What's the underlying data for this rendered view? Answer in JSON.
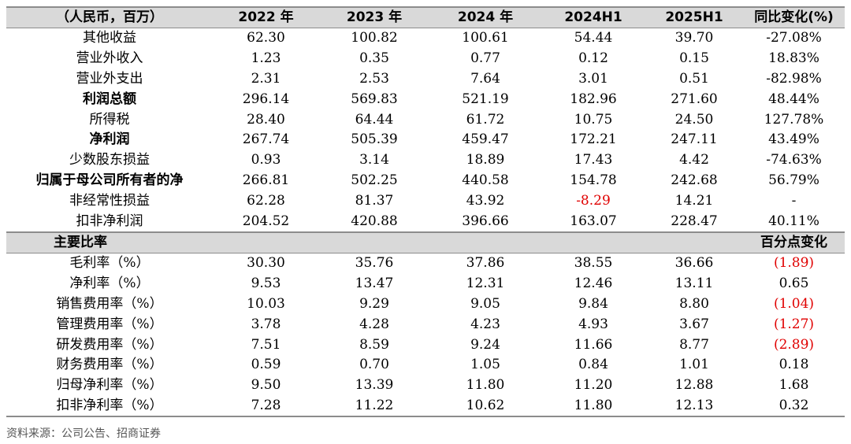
{
  "header": [
    "（人民币，百万）",
    "2022 年",
    "2023 年",
    "2024 年",
    "2024H1",
    "2025H1",
    "同比变化(%)"
  ],
  "rows": [
    {
      "label": "其他收益",
      "values": [
        "62.30",
        "100.82",
        "100.61",
        "54.44",
        "39.70",
        "-27.08%"
      ]
    },
    {
      "label": "营业外收入",
      "values": [
        "1.23",
        "0.35",
        "0.77",
        "0.12",
        "0.15",
        "18.83%"
      ]
    },
    {
      "label": "营业外支出",
      "values": [
        "2.31",
        "2.53",
        "7.64",
        "3.01",
        "0.51",
        "-82.98%"
      ]
    },
    {
      "label": "利润总额",
      "values": [
        "296.14",
        "569.83",
        "521.19",
        "182.96",
        "271.60",
        "48.44%"
      ]
    },
    {
      "label": "所得税",
      "values": [
        "28.40",
        "64.44",
        "61.72",
        "10.75",
        "24.50",
        "127.78%"
      ]
    },
    {
      "label": "净利润",
      "values": [
        "267.74",
        "505.39",
        "459.47",
        "172.21",
        "247.11",
        "43.49%"
      ]
    },
    {
      "label": "少数股东损益",
      "values": [
        "0.93",
        "3.14",
        "18.89",
        "17.43",
        "4.42",
        "-74.63%"
      ]
    },
    {
      "label": "归属于母公司所有者的净",
      "values": [
        "266.81",
        "502.25",
        "440.58",
        "154.78",
        "242.68",
        "56.79%"
      ]
    },
    {
      "label": "非经常性损益",
      "values": [
        "62.28",
        "81.37",
        "43.92",
        "-8.29",
        "14.21",
        "-"
      ]
    },
    {
      "label": "扣非净利润",
      "values": [
        "204.52",
        "420.88",
        "396.66",
        "163.07",
        "228.47",
        "40.11%"
      ]
    }
  ],
  "section": {
    "label": "主要比率",
    "change_label": "百分点变化"
  },
  "ratio_rows": [
    {
      "label": "毛利率（%）",
      "values": [
        "30.30",
        "35.76",
        "37.86",
        "38.55",
        "36.66",
        "(1.89)"
      ]
    },
    {
      "label": "净利率（%）",
      "values": [
        "9.53",
        "13.47",
        "12.31",
        "12.46",
        "13.11",
        "0.65"
      ]
    },
    {
      "label": "销售费用率（%）",
      "values": [
        "10.03",
        "9.29",
        "9.05",
        "9.84",
        "8.80",
        "(1.04)"
      ]
    },
    {
      "label": "管理费用率（%）",
      "values": [
        "3.78",
        "4.28",
        "4.23",
        "4.93",
        "3.67",
        "(1.27)"
      ]
    },
    {
      "label": "研发费用率（%）",
      "values": [
        "7.51",
        "8.59",
        "9.24",
        "11.66",
        "8.77",
        "(2.89)"
      ]
    },
    {
      "label": "财务费用率（%）",
      "values": [
        "0.59",
        "0.70",
        "1.05",
        "0.84",
        "1.01",
        "0.18"
      ]
    },
    {
      "label": "归母净利率（%）",
      "values": [
        "9.50",
        "13.39",
        "11.80",
        "11.20",
        "12.88",
        "1.68"
      ]
    },
    {
      "label": "扣非净利率（%）",
      "values": [
        "7.28",
        "11.22",
        "10.62",
        "11.80",
        "12.13",
        "0.32"
      ]
    }
  ],
  "source": "资料来源：公司公告、招商证券",
  "colors": {
    "negative": "#e00000",
    "header_bg": "#d9d9d9"
  }
}
